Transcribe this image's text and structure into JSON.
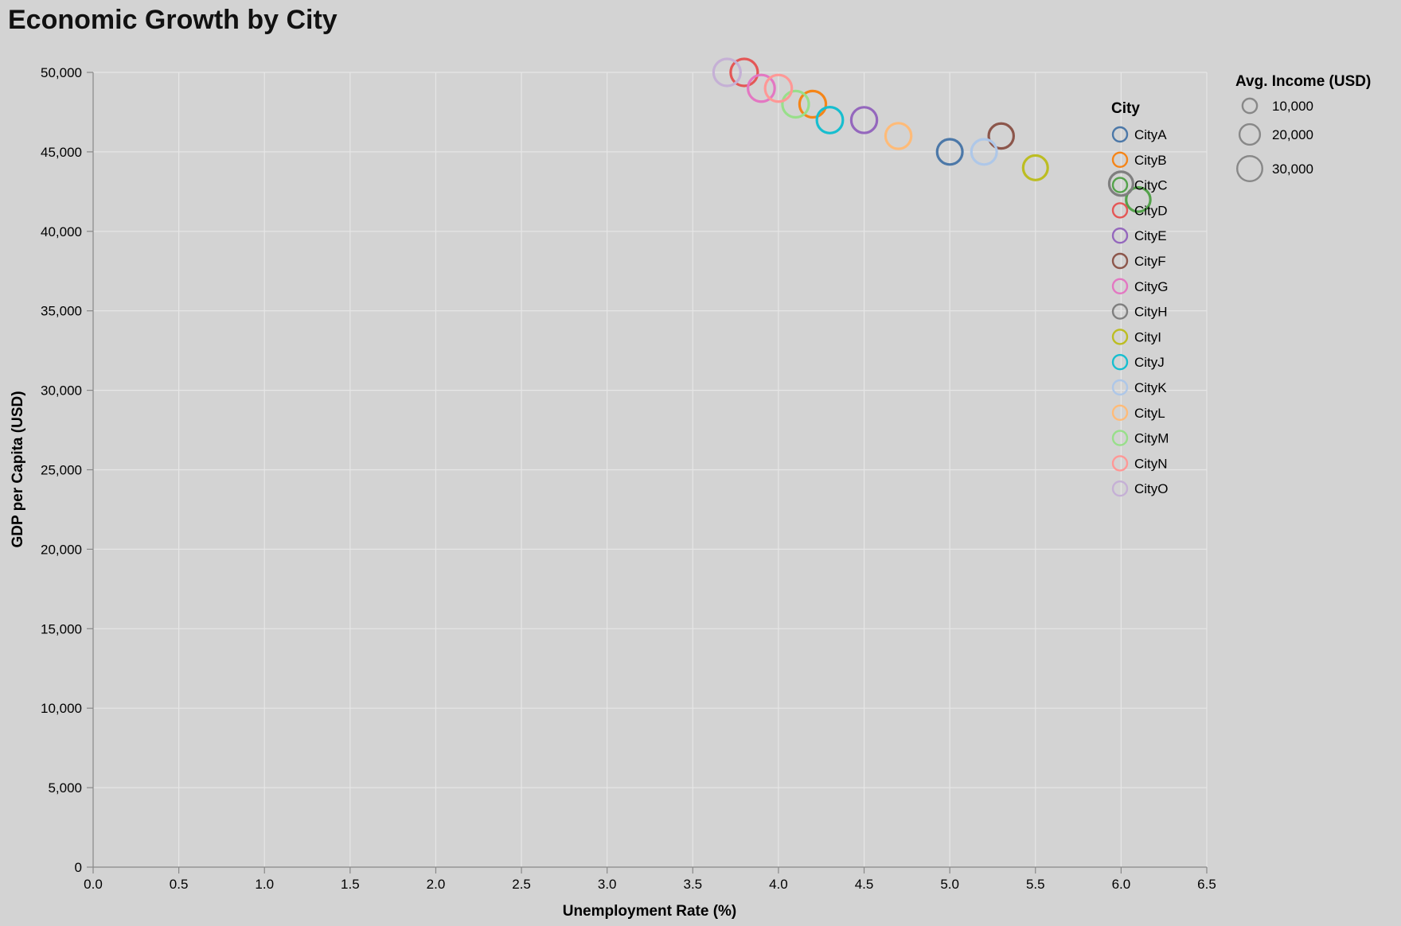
{
  "chart_data": {
    "type": "scatter",
    "title": "Economic Growth by City",
    "xlabel": "Unemployment Rate (%)",
    "ylabel": "GDP per Capita (USD)",
    "xlim": [
      0,
      6.5
    ],
    "ylim": [
      0,
      50000
    ],
    "x_ticks": [
      "0.0",
      "0.5",
      "1.0",
      "1.5",
      "2.0",
      "2.5",
      "3.0",
      "3.5",
      "4.0",
      "4.5",
      "5.0",
      "5.5",
      "6.0",
      "6.5"
    ],
    "y_ticks": [
      "0",
      "5,000",
      "10,000",
      "15,000",
      "20,000",
      "25,000",
      "30,000",
      "35,000",
      "40,000",
      "45,000",
      "50,000"
    ],
    "grid": true,
    "legend_color": {
      "title": "City",
      "placement": "right"
    },
    "legend_size": {
      "title": "Avg. Income (USD)",
      "placement": "top-right",
      "entries": [
        {
          "label": "10,000",
          "value": 10000
        },
        {
          "label": "20,000",
          "value": 20000
        },
        {
          "label": "30,000",
          "value": 30000
        }
      ]
    },
    "series": [
      {
        "name": "CityA",
        "color": "#4c78a8",
        "x": 5.0,
        "y": 45000,
        "size": 35000
      },
      {
        "name": "CityB",
        "color": "#f58518",
        "x": 4.2,
        "y": 48000,
        "size": 38000
      },
      {
        "name": "CityC",
        "color": "#54a24b",
        "x": 6.1,
        "y": 42000,
        "size": 32000
      },
      {
        "name": "CityD",
        "color": "#e45756",
        "x": 3.8,
        "y": 50000,
        "size": 40000
      },
      {
        "name": "CityE",
        "color": "#9467bd",
        "x": 4.5,
        "y": 47000,
        "size": 36000
      },
      {
        "name": "CityF",
        "color": "#8c564b",
        "x": 5.3,
        "y": 46000,
        "size": 34000
      },
      {
        "name": "CityG",
        "color": "#e377c2",
        "x": 3.9,
        "y": 49000,
        "size": 39000
      },
      {
        "name": "CityH",
        "color": "#7f7f7f",
        "x": 6.0,
        "y": 43000,
        "size": 31000
      },
      {
        "name": "CityI",
        "color": "#bcbd22",
        "x": 5.5,
        "y": 44000,
        "size": 33000
      },
      {
        "name": "CityJ",
        "color": "#17becf",
        "x": 4.3,
        "y": 47000,
        "size": 37000
      },
      {
        "name": "CityK",
        "color": "#aec7e8",
        "x": 5.2,
        "y": 45000,
        "size": 35000
      },
      {
        "name": "CityL",
        "color": "#ffbb78",
        "x": 4.7,
        "y": 46000,
        "size": 36000
      },
      {
        "name": "CityM",
        "color": "#98df8a",
        "x": 4.1,
        "y": 48000,
        "size": 38000
      },
      {
        "name": "CityN",
        "color": "#ff9896",
        "x": 4.0,
        "y": 49000,
        "size": 39000
      },
      {
        "name": "CityO",
        "color": "#c5b0d5",
        "x": 3.7,
        "y": 50000,
        "size": 40000
      }
    ]
  }
}
